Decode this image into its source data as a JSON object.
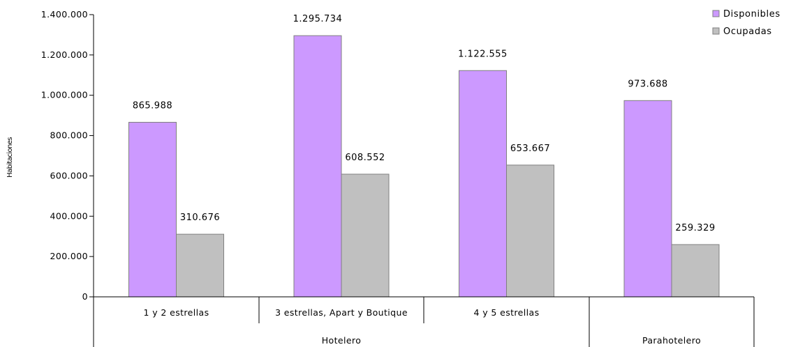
{
  "chart_data": {
    "type": "bar",
    "title": "",
    "ylabel": "Habitaciones",
    "xlabel": "",
    "ylim": [
      0,
      1400000
    ],
    "yticks": [
      0,
      200000,
      400000,
      600000,
      800000,
      1000000,
      1200000,
      1400000
    ],
    "ytick_labels": [
      "0",
      "200.000",
      "400.000",
      "600.000",
      "800.000",
      "1.000.000",
      "1.200.000",
      "1.400.000"
    ],
    "categories": [
      "1 y 2 estrellas",
      "3 estrellas, Apart y Boutique",
      "4 y 5 estrellas",
      "Parahotelero"
    ],
    "groups": [
      {
        "label": "Hotelero",
        "categories": [
          "1 y 2 estrellas",
          "3 estrellas, Apart y Boutique",
          "4 y 5 estrellas"
        ]
      },
      {
        "label": "Parahotelero",
        "categories": [
          "Parahotelero"
        ]
      }
    ],
    "series": [
      {
        "name": "Disponibles",
        "color": "#cc99ff",
        "values": [
          865988,
          1295734,
          1122555,
          973688
        ],
        "labels": [
          "865.988",
          "1.295.734",
          "1.122.555",
          "973.688"
        ]
      },
      {
        "name": "Ocupadas",
        "color": "#c0c0c0",
        "values": [
          310676,
          608552,
          653667,
          259329
        ],
        "labels": [
          "310.676",
          "608.552",
          "653.667",
          "259.329"
        ]
      }
    ],
    "legend_position": "top-right",
    "grid": false
  }
}
